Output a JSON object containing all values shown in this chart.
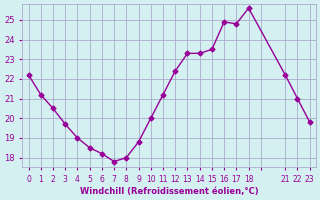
{
  "x": [
    0,
    1,
    2,
    3,
    4,
    5,
    6,
    7,
    8,
    9,
    10,
    11,
    12,
    13,
    14,
    15,
    16,
    17,
    18,
    21,
    22,
    23
  ],
  "y": [
    22.2,
    21.2,
    20.5,
    19.7,
    19.0,
    18.5,
    18.2,
    17.8,
    18.0,
    18.8,
    20.0,
    21.2,
    22.4,
    23.3,
    23.3,
    23.5,
    24.9,
    24.8,
    25.6,
    22.2,
    21.0,
    19.8
  ],
  "line_color": "#990099",
  "marker_color": "#990099",
  "bg_color": "#d4f0f0",
  "grid_color": "#aaaacc",
  "xlabel": "Windchill (Refroidissement éolien,°C)",
  "xtick_labels": [
    "0",
    "1",
    "2",
    "3",
    "4",
    "5",
    "6",
    "7",
    "8",
    "9",
    "10",
    "11",
    "12",
    "13",
    "14",
    "15",
    "16",
    "17",
    "18",
    "",
    "21",
    "22",
    "23"
  ],
  "xtick_positions": [
    0,
    1,
    2,
    3,
    4,
    5,
    6,
    7,
    8,
    9,
    10,
    11,
    12,
    13,
    14,
    15,
    16,
    17,
    18,
    19,
    21,
    22,
    23
  ],
  "ylim": [
    17.5,
    25.8
  ],
  "yticks": [
    18,
    19,
    20,
    21,
    22,
    23,
    24,
    25
  ],
  "xlabel_color": "#990099",
  "tick_color": "#990099"
}
